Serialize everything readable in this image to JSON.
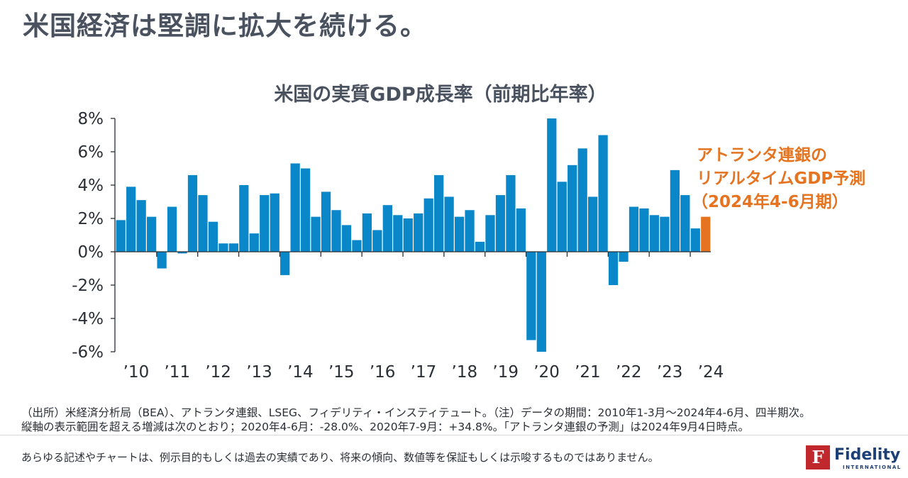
{
  "headline": "米国経済は堅調に拡大を続ける。",
  "chart_data": {
    "type": "bar",
    "title": "米国の実質GDP成長率（前期比年率）",
    "xlabel": "",
    "ylabel": "",
    "ylim": [
      -6,
      8
    ],
    "yticks": [
      8,
      6,
      4,
      2,
      0,
      -2,
      -4,
      -6
    ],
    "ytick_labels": [
      "8%",
      "6%",
      "4%",
      "2%",
      "0%",
      "-2%",
      "-4%",
      "-6%"
    ],
    "year_labels": [
      "’10",
      "’11",
      "’12",
      "’13",
      "’14",
      "’15",
      "’16",
      "’17",
      "’18",
      "’19",
      "’20",
      "’21",
      "’22",
      "’23",
      "’24"
    ],
    "categories": [
      "2010Q1",
      "2010Q2",
      "2010Q3",
      "2010Q4",
      "2011Q1",
      "2011Q2",
      "2011Q3",
      "2011Q4",
      "2012Q1",
      "2012Q2",
      "2012Q3",
      "2012Q4",
      "2013Q1",
      "2013Q2",
      "2013Q3",
      "2013Q4",
      "2014Q1",
      "2014Q2",
      "2014Q3",
      "2014Q4",
      "2015Q1",
      "2015Q2",
      "2015Q3",
      "2015Q4",
      "2016Q1",
      "2016Q2",
      "2016Q3",
      "2016Q4",
      "2017Q1",
      "2017Q2",
      "2017Q3",
      "2017Q4",
      "2018Q1",
      "2018Q2",
      "2018Q3",
      "2018Q4",
      "2019Q1",
      "2019Q2",
      "2019Q3",
      "2019Q4",
      "2020Q1",
      "2020Q2",
      "2020Q3",
      "2020Q4",
      "2021Q1",
      "2021Q2",
      "2021Q3",
      "2021Q4",
      "2022Q1",
      "2022Q2",
      "2022Q3",
      "2022Q4",
      "2023Q1",
      "2023Q2",
      "2023Q3",
      "2023Q4",
      "2024Q1",
      "2024Q2"
    ],
    "series": [
      {
        "name": "実質GDP成長率",
        "color": "#0a87c8",
        "values": [
          1.9,
          3.9,
          3.1,
          2.1,
          -1.0,
          2.7,
          -0.1,
          4.6,
          3.4,
          1.8,
          0.5,
          0.5,
          4.0,
          1.1,
          3.4,
          3.5,
          -1.4,
          5.3,
          5.0,
          2.1,
          3.6,
          2.5,
          1.6,
          0.7,
          2.3,
          1.3,
          2.8,
          2.2,
          2.0,
          2.3,
          3.2,
          4.6,
          3.3,
          2.1,
          2.5,
          0.6,
          2.2,
          3.4,
          4.6,
          2.6,
          -5.3,
          -28.0,
          34.8,
          4.2,
          5.2,
          6.2,
          3.3,
          7.0,
          -2.0,
          -0.6,
          2.7,
          2.6,
          2.2,
          2.1,
          4.9,
          3.4,
          1.4,
          null
        ]
      },
      {
        "name": "アトランタ連銀のリアルタイムGDP予測（2024年4-6月期）",
        "color": "#e5731f",
        "values": [
          null,
          null,
          null,
          null,
          null,
          null,
          null,
          null,
          null,
          null,
          null,
          null,
          null,
          null,
          null,
          null,
          null,
          null,
          null,
          null,
          null,
          null,
          null,
          null,
          null,
          null,
          null,
          null,
          null,
          null,
          null,
          null,
          null,
          null,
          null,
          null,
          null,
          null,
          null,
          null,
          null,
          null,
          null,
          null,
          null,
          null,
          null,
          null,
          null,
          null,
          null,
          null,
          null,
          null,
          null,
          null,
          null,
          2.1
        ]
      }
    ],
    "annotation": [
      "アトランタ連銀の",
      "リアルタイムGDP予測",
      "（2024年4-6月期）"
    ],
    "grid": false,
    "legend": "none"
  },
  "footnote": {
    "line1": "（出所）米経済分析局（BEA）、アトランタ連銀、LSEG、フィデリティ・インスティテュート。（注）データの期間：2010年1-3月～2024年4-6月、四半期次。",
    "line2": "縦軸の表示範囲を超える増減は次のとおり；2020年4-6月：-28.0%、2020年7-9月：+34.8%。「アトランタ連銀の予測」は2024年9月4日時点。"
  },
  "disclaimer": "あらゆる記述やチャートは、例示目的もしくは過去の実績であり、将来の傾向、数値等を保証もしくは示唆するものではありません。",
  "logo": {
    "mark": "F",
    "name": "Fidelity",
    "sub": "INTERNATIONAL",
    "color": "#c0282d"
  }
}
